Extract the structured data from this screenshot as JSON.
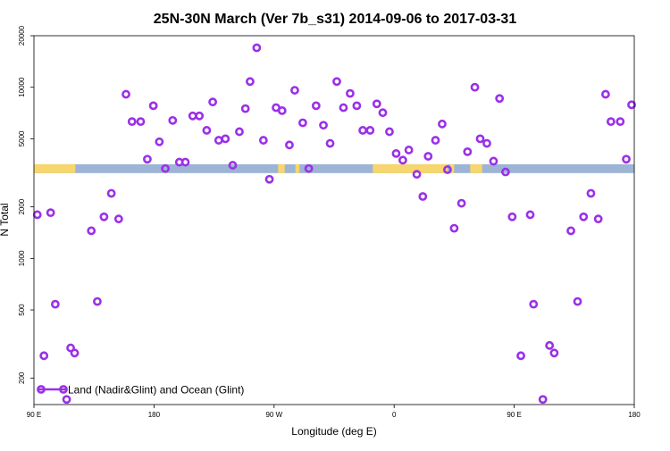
{
  "chart_data": {
    "type": "scatter",
    "title": "25N-30N March (Ver 7b_s31)   2014-09-06 to 2017-03-31",
    "xlabel": "Longitude (deg E)",
    "ylabel": "N Total",
    "x_scale": "longitude-unwrapped",
    "xlim": [
      90,
      540
    ],
    "y_scale": "log",
    "ylim": [
      140,
      20000
    ],
    "x_ticks": [
      {
        "value": 90,
        "label": "90 E"
      },
      {
        "value": 180,
        "label": "180"
      },
      {
        "value": 270,
        "label": "90 W"
      },
      {
        "value": 360,
        "label": "0"
      },
      {
        "value": 450,
        "label": "90 E"
      },
      {
        "value": 540,
        "label": "180"
      }
    ],
    "y_ticks": [
      {
        "value": 200,
        "label": "200"
      },
      {
        "value": 500,
        "label": "500"
      },
      {
        "value": 1000,
        "label": "1000"
      },
      {
        "value": 2000,
        "label": "2000"
      },
      {
        "value": 5000,
        "label": "5000"
      },
      {
        "value": 10000,
        "label": "10000"
      },
      {
        "value": 20000,
        "label": "20000"
      }
    ],
    "land_ocean_band": {
      "y_range_data": [
        3150,
        3550
      ],
      "ocean_color": "#9db4d6",
      "land_color": "#f6d66e",
      "land_segments": [
        [
          90,
          121
        ],
        [
          273,
          278
        ],
        [
          286,
          289
        ],
        [
          344,
          400
        ],
        [
          402,
          405
        ],
        [
          417,
          426
        ]
      ]
    },
    "legend": {
      "position": "bottom-left",
      "label": "Land (Nadir&Glint) and Ocean (Glint)"
    },
    "series": [
      {
        "name": "Land (Nadir&Glint) and Ocean (Glint)",
        "color": "#9b30e8",
        "points": [
          [
            92.5,
            1800
          ],
          [
            97.5,
            270
          ],
          [
            102.5,
            1850
          ],
          [
            106,
            540
          ],
          [
            114.5,
            150
          ],
          [
            117.5,
            300
          ],
          [
            120.5,
            280
          ],
          [
            133,
            1450
          ],
          [
            137.5,
            560
          ],
          [
            142.5,
            1750
          ],
          [
            148,
            2400
          ],
          [
            153.5,
            1700
          ],
          [
            159,
            9100
          ],
          [
            163.5,
            6300
          ],
          [
            170,
            6300
          ],
          [
            175,
            3800
          ],
          [
            179.5,
            7800
          ],
          [
            184,
            4800
          ],
          [
            188.5,
            3350
          ],
          [
            194,
            6400
          ],
          [
            199,
            3650
          ],
          [
            203.5,
            3650
          ],
          [
            209,
            6800
          ],
          [
            214,
            6800
          ],
          [
            219.5,
            5600
          ],
          [
            224,
            8200
          ],
          [
            228.5,
            4900
          ],
          [
            233.5,
            5000
          ],
          [
            239,
            3500
          ],
          [
            244,
            5500
          ],
          [
            248.5,
            7500
          ],
          [
            252,
            10800
          ],
          [
            257,
            17000
          ],
          [
            262,
            4900
          ],
          [
            266.5,
            2900
          ],
          [
            271.5,
            7600
          ],
          [
            276,
            7300
          ],
          [
            281.5,
            4600
          ],
          [
            285.5,
            9600
          ],
          [
            291.5,
            6200
          ],
          [
            296,
            3350
          ],
          [
            301.5,
            7800
          ],
          [
            307,
            6000
          ],
          [
            312,
            4700
          ],
          [
            317,
            10800
          ],
          [
            322,
            7600
          ],
          [
            327,
            9200
          ],
          [
            332,
            7800
          ],
          [
            336.5,
            5600
          ],
          [
            342,
            5600
          ],
          [
            347,
            8000
          ],
          [
            351.5,
            7100
          ],
          [
            356.5,
            5500
          ],
          [
            361.5,
            4100
          ],
          [
            366.5,
            3750
          ],
          [
            371,
            4300
          ],
          [
            377,
            3100
          ],
          [
            381.5,
            2300
          ],
          [
            385.5,
            3950
          ],
          [
            391,
            4900
          ],
          [
            396,
            6100
          ],
          [
            400,
            3300
          ],
          [
            405,
            1500
          ],
          [
            410.5,
            2100
          ],
          [
            415,
            4200
          ],
          [
            420.5,
            10000
          ],
          [
            424.5,
            5000
          ],
          [
            429.5,
            4700
          ],
          [
            434.5,
            3700
          ],
          [
            439,
            8600
          ],
          [
            443.5,
            3200
          ],
          [
            448.5,
            1750
          ],
          [
            455,
            270
          ],
          [
            462,
            1800
          ],
          [
            464.5,
            540
          ],
          [
            471.5,
            150
          ],
          [
            476.5,
            310
          ],
          [
            480,
            280
          ],
          [
            492.5,
            1450
          ],
          [
            497.5,
            560
          ],
          [
            502,
            1750
          ],
          [
            507.5,
            2400
          ],
          [
            513,
            1700
          ],
          [
            518.5,
            9100
          ],
          [
            522.5,
            6300
          ],
          [
            529.5,
            6300
          ],
          [
            534,
            3800
          ],
          [
            538,
            7900
          ]
        ]
      }
    ]
  }
}
